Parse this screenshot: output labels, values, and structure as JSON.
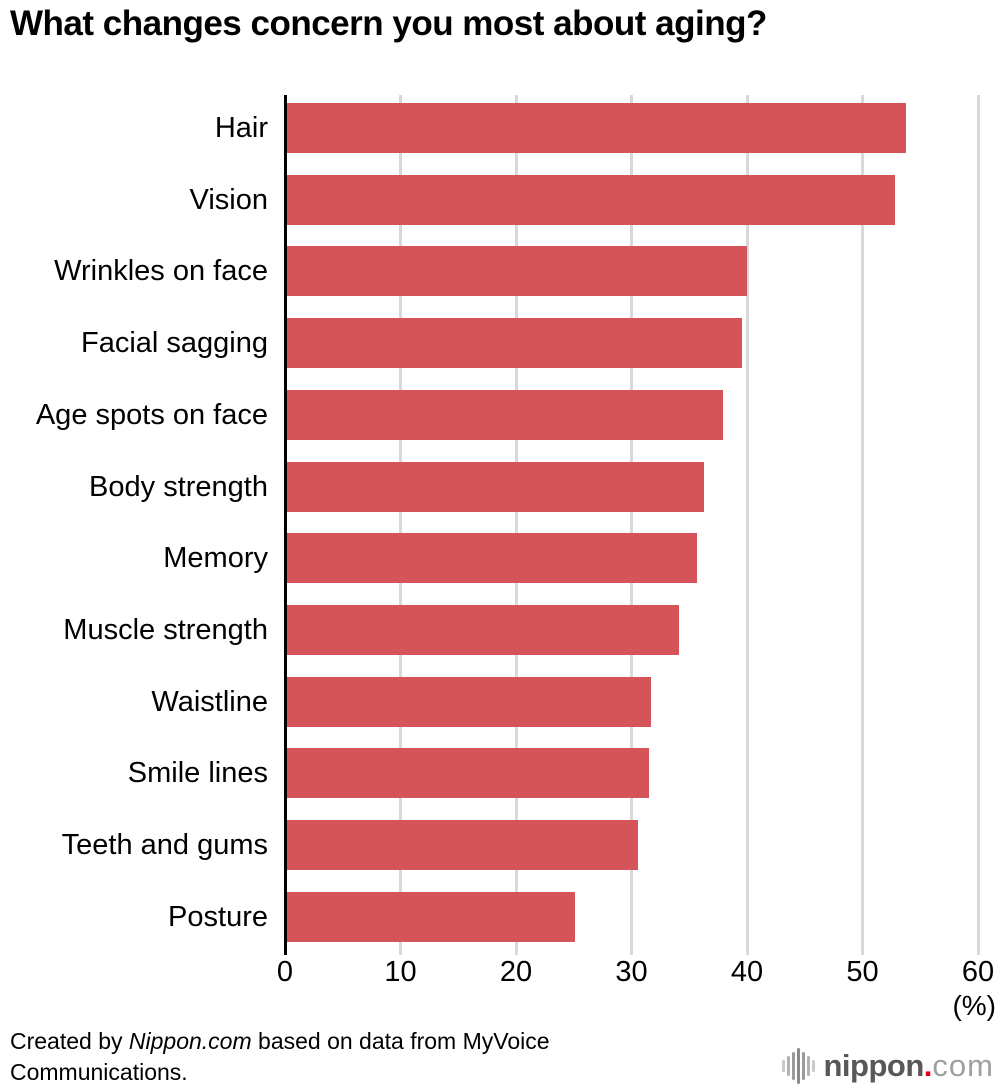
{
  "chart": {
    "title": "What changes concern you most about aging?",
    "unit_label": "(%)"
  },
  "chart_data": {
    "type": "bar",
    "orientation": "horizontal",
    "title": "What changes concern you most about aging?",
    "categories": [
      "Hair",
      "Vision",
      "Wrinkles on face",
      "Facial sagging",
      "Age spots on face",
      "Body strength",
      "Memory",
      "Muscle strength",
      "Waistline",
      "Smile lines",
      "Teeth and gums",
      "Posture"
    ],
    "values": [
      53.8,
      52.8,
      40.0,
      39.6,
      37.9,
      36.3,
      35.7,
      34.1,
      31.7,
      31.5,
      30.6,
      25.1
    ],
    "xlabel": "(%)",
    "ylabel": "",
    "xlim": [
      0,
      60
    ],
    "xticks": [
      0,
      10,
      20,
      30,
      40,
      50,
      60
    ],
    "grid": true,
    "legend": false,
    "bar_color": "#d45459",
    "gridline_color": "#d9d9d9",
    "axis_color": "#000000"
  },
  "footer": {
    "credit_prefix": "Created by ",
    "credit_source": "Nippon.com",
    "credit_suffix": " based on data from MyVoice Communications.",
    "logo": {
      "name": "nippon",
      "dot": ".",
      "tld": "com",
      "icon": "brush-bars-icon",
      "name_color": "#595757",
      "dot_color": "#e60012",
      "tld_color": "#9fa0a0"
    }
  }
}
